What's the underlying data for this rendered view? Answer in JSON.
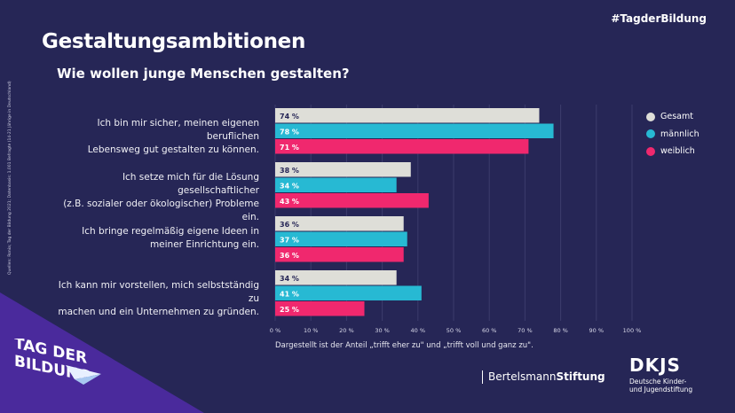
{
  "hashtag": "#TagderBildung",
  "title": "Gestaltungsambitionen",
  "subtitle": "Wie wollen junge Menschen gestalten?",
  "source": "Quellen: Ronia; Tag der Bildung 2021; Datenbasis: 1.001 Befragte (14-21 Jährige in Deutschland)",
  "note": "Dargestellt ist der Anteil „trifft eher zu\" und „trifft voll und ganz zu\".",
  "logos": {
    "tag_der_bildung": "TAG DER BILDUNG",
    "bertelsmann_light": "Bertelsmann",
    "bertelsmann_bold": "Stiftung",
    "dkjs": "DKJS",
    "dkjs_sub1": "Deutsche Kinder-",
    "dkjs_sub2": "und Jugendstiftung"
  },
  "colors": {
    "background": "#262656",
    "triangle": "#4a2a9c",
    "gesamt": "#deded8",
    "maennlich": "#27b9d3",
    "weiblich": "#f0286e"
  },
  "chart_data": {
    "type": "bar",
    "orientation": "horizontal",
    "categories": [
      [
        "Ich bin mir sicher, meinen eigenen beruflichen",
        "Lebensweg gut gestalten zu können."
      ],
      [
        "Ich setze mich für die Lösung gesellschaftlicher",
        "(z.B. sozialer oder ökologischer) Probleme ein."
      ],
      [
        "Ich bringe regelmäßig eigene Ideen in",
        "meiner Einrichtung ein."
      ],
      [
        "Ich kann mir vorstellen, mich selbstständig zu",
        "machen und ein Unternehmen zu gründen."
      ]
    ],
    "series": [
      {
        "name": "Gesamt",
        "color": "#deded8",
        "values": [
          74,
          38,
          36,
          34
        ]
      },
      {
        "name": "männlich",
        "color": "#27b9d3",
        "values": [
          78,
          34,
          37,
          41
        ]
      },
      {
        "name": "weiblich",
        "color": "#f0286e",
        "values": [
          71,
          43,
          36,
          25
        ]
      }
    ],
    "xlim": [
      0,
      100
    ],
    "xticks": [
      "0 %",
      "10 %",
      "20 %",
      "30 %",
      "40 %",
      "50 %",
      "60 %",
      "70 %",
      "80 %",
      "90 %",
      "100 %"
    ],
    "value_suffix": " %",
    "grid": true,
    "legend": "right"
  }
}
